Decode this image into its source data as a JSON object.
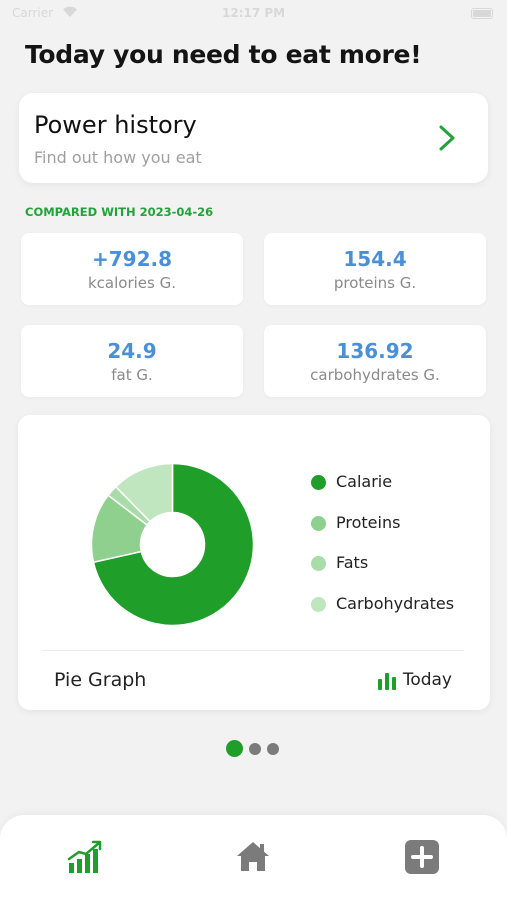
{
  "status_bar": {
    "carrier": "Carrier",
    "time": "12:17 PM"
  },
  "headline": "Today you need to eat more!",
  "history_card": {
    "title": "Power history",
    "subtitle": "Find out how you eat"
  },
  "compared_text": "COMPARED WITH 2023-04-26",
  "stats": [
    {
      "value": "+792.8",
      "label": "kcalories G."
    },
    {
      "value": "154.4",
      "label": "proteins G."
    },
    {
      "value": "24.9",
      "label": "fat G."
    },
    {
      "value": "136.92",
      "label": "carbohydrates G."
    }
  ],
  "chart_data": {
    "type": "pie",
    "donut": true,
    "categories": [
      "Calarie",
      "Proteins",
      "Fats",
      "Carbohydrates"
    ],
    "values": [
      792.8,
      154.4,
      24.9,
      136.92
    ],
    "colors": [
      "#1f9e2a",
      "#8fd08f",
      "#a8dca8",
      "#bfe6bf"
    ],
    "legend_position": "right"
  },
  "pie_card": {
    "footer_label": "Pie Graph",
    "period_label": "Today"
  },
  "pager": {
    "count": 3,
    "active_index": 0
  },
  "colors": {
    "accent_green": "#1f9e2a",
    "stat_blue": "#4a90d6",
    "inactive_gray": "#7b7b7b"
  },
  "tabs": [
    {
      "icon": "growth-chart-icon",
      "active": true
    },
    {
      "icon": "home-icon",
      "active": false
    },
    {
      "icon": "plus-square-icon",
      "active": false
    }
  ]
}
